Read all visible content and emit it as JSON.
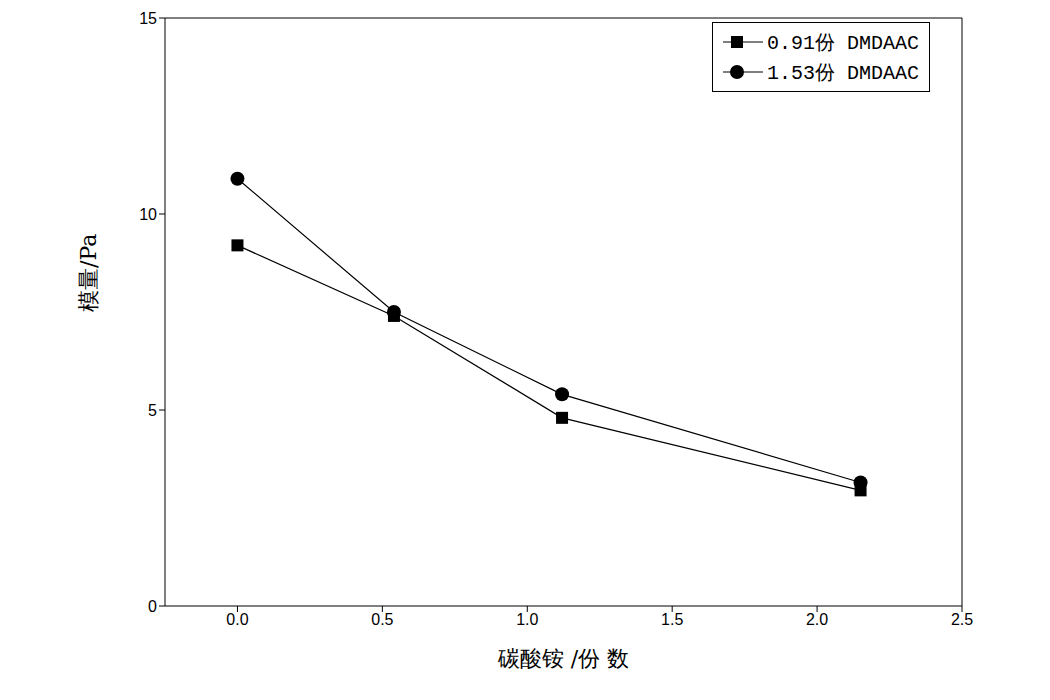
{
  "chart_data": {
    "type": "line",
    "x_label": "碳酸铵 /份 数",
    "y_label": "模量/Pa",
    "x": [
      0,
      0.54,
      1.12,
      2.15
    ],
    "series": [
      {
        "name": "0.91份 DMDAAC",
        "color": "#000000",
        "marker": "square",
        "values": [
          9.2,
          7.4,
          4.8,
          2.95
        ]
      },
      {
        "name": "1.53份 DMDAAC",
        "color": "#000000",
        "marker": "circle",
        "values": [
          10.9,
          7.5,
          5.4,
          3.15
        ]
      }
    ],
    "xlim": [
      -0.25,
      2.5
    ],
    "xticks": [
      {
        "value": 0,
        "label": "0.0"
      },
      0.5,
      {
        "value": 1,
        "label": "1.0"
      },
      1.5,
      {
        "value": 2,
        "label": "2.0"
      },
      2.5
    ],
    "ylim": [
      0,
      15
    ],
    "yticks": [
      0,
      5,
      10,
      15
    ],
    "grid": false,
    "legend": "top-right"
  }
}
